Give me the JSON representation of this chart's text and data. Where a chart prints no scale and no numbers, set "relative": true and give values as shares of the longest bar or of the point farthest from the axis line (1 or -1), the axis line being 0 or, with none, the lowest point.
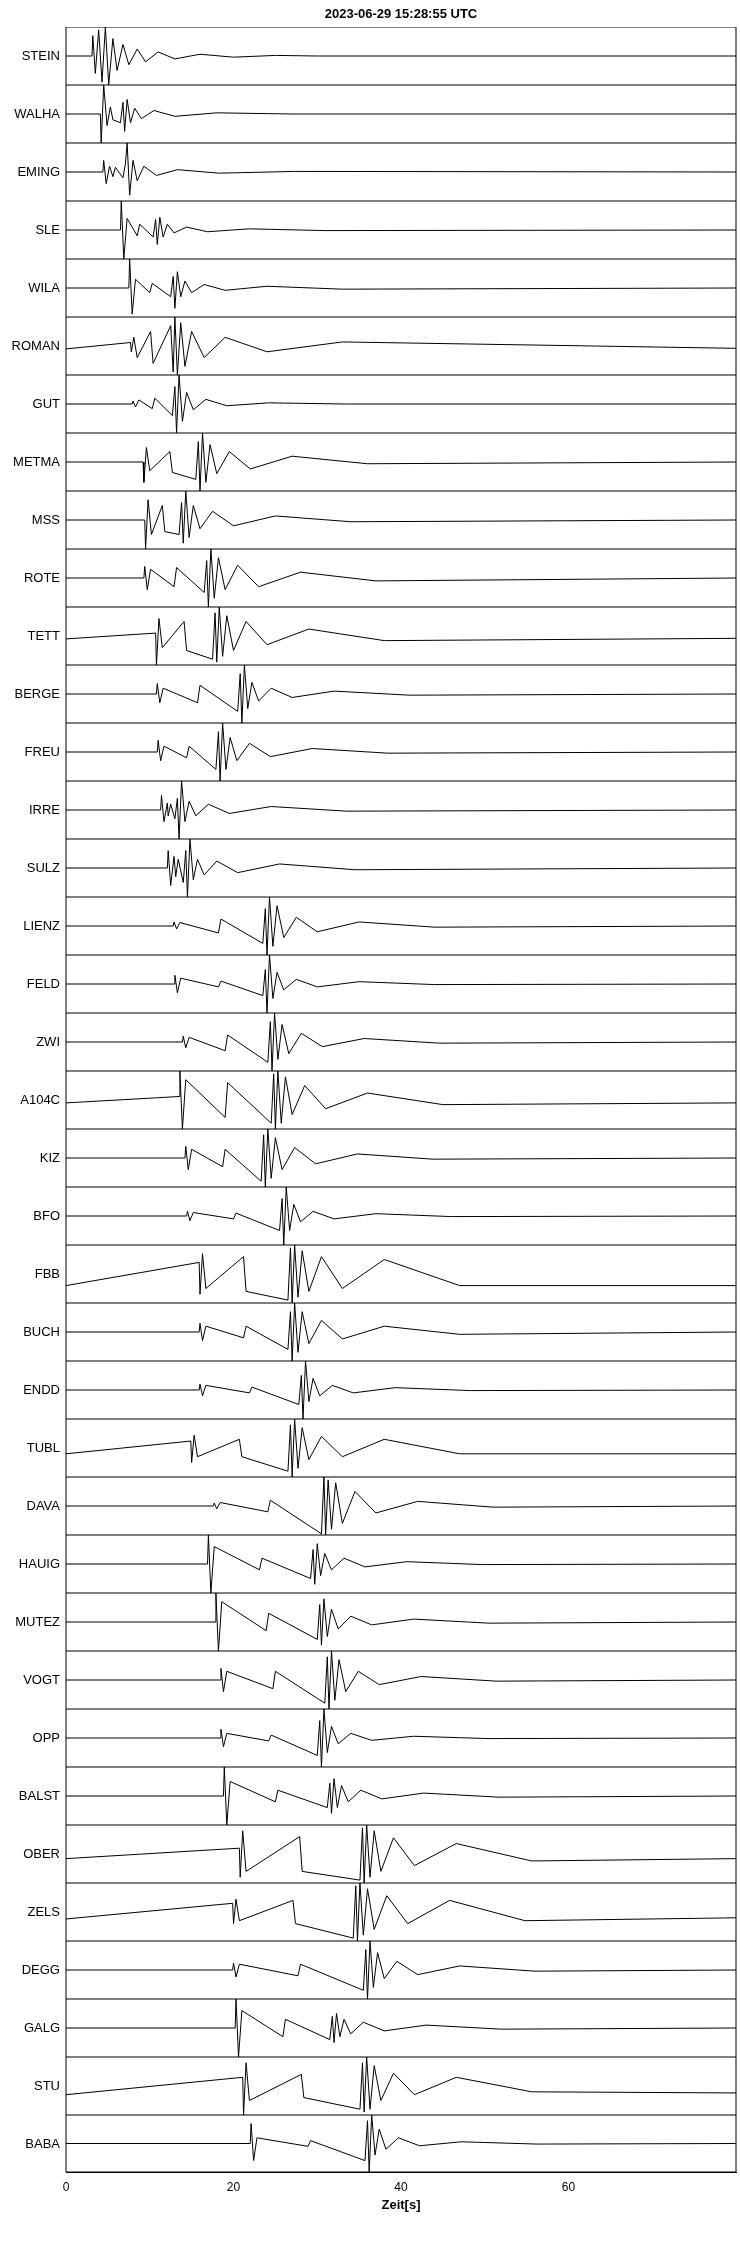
{
  "chart_data": [
    {
      "type": "line",
      "title": "2023-06-29  15:28:55 UTC",
      "relative": true,
      "ylabel": "STEIN",
      "color": "#000000",
      "xlim": [
        0,
        80
      ],
      "xticks": [
        0,
        20,
        40,
        60
      ],
      "tick_labels": false,
      "x": [
        0,
        3.1,
        3.2,
        3.5,
        3.9,
        4.3,
        4.7,
        5.1,
        5.6,
        6.1,
        6.8,
        7.5,
        8.5,
        9.5,
        11,
        13,
        16,
        20,
        25,
        30,
        38,
        80
      ],
      "values": [
        0.5,
        0.5,
        0.85,
        0.2,
        0.95,
        0.05,
        1,
        0,
        0.8,
        0.25,
        0.7,
        0.35,
        0.62,
        0.4,
        0.57,
        0.45,
        0.53,
        0.48,
        0.51,
        0.5,
        0.5,
        0.5
      ]
    },
    {
      "type": "line",
      "relative": true,
      "ylabel": "WALHA",
      "color": "#000000",
      "xlim": [
        0,
        80
      ],
      "xticks": [
        0,
        20,
        40,
        60
      ],
      "tick_labels": false,
      "x": [
        0,
        4.1,
        4.2,
        4.5,
        4.9,
        5.3,
        5.6,
        6.5,
        6.8,
        7.0,
        7.3,
        7.7,
        8.2,
        9,
        10.5,
        13,
        18,
        27,
        80
      ],
      "values": [
        0.5,
        0.5,
        0,
        1,
        0.3,
        0.62,
        0.4,
        0.35,
        0.7,
        0.2,
        0.75,
        0.35,
        0.6,
        0.42,
        0.56,
        0.46,
        0.52,
        0.5,
        0.5
      ]
    },
    {
      "type": "line",
      "relative": true,
      "ylabel": "EMING",
      "color": "#000000",
      "xlim": [
        0,
        80
      ],
      "xticks": [
        0,
        20,
        40,
        60
      ],
      "tick_labels": false,
      "x": [
        0,
        4.4,
        4.5,
        4.8,
        5.2,
        5.6,
        5.9,
        6.8,
        7.1,
        7.3,
        7.6,
        8.0,
        8.5,
        9.3,
        10.8,
        13.3,
        18.3,
        27.3,
        80
      ],
      "values": [
        0.5,
        0.5,
        0.7,
        0.3,
        0.6,
        0.42,
        0.58,
        0.4,
        0.65,
        1,
        0.1,
        0.7,
        0.35,
        0.6,
        0.44,
        0.54,
        0.48,
        0.51,
        0.5
      ]
    },
    {
      "type": "line",
      "relative": true,
      "ylabel": "SLE",
      "color": "#000000",
      "xlim": [
        0,
        80
      ],
      "xticks": [
        0,
        20,
        40,
        60
      ],
      "tick_labels": false,
      "x": [
        0,
        6.5,
        6.6,
        6.9,
        7.3,
        8.5,
        8.8,
        10.4,
        10.7,
        10.9,
        11.2,
        11.6,
        12.1,
        12.9,
        14.4,
        16.9,
        21.9,
        30.9,
        80
      ],
      "values": [
        0.5,
        0.5,
        1,
        0,
        0.7,
        0.4,
        0.6,
        0.38,
        0.68,
        0.25,
        0.72,
        0.38,
        0.6,
        0.45,
        0.55,
        0.47,
        0.52,
        0.49,
        0.5
      ]
    },
    {
      "type": "line",
      "relative": true,
      "ylabel": "WILA",
      "color": "#000000",
      "xlim": [
        0,
        80
      ],
      "xticks": [
        0,
        20,
        40,
        60
      ],
      "tick_labels": false,
      "x": [
        0,
        7.5,
        7.6,
        7.9,
        8.3,
        10,
        10.3,
        12.5,
        12.8,
        13,
        13.3,
        13.7,
        14.2,
        15,
        16.5,
        19,
        24,
        33,
        80
      ],
      "values": [
        0.5,
        0.5,
        1,
        0.05,
        0.65,
        0.42,
        0.58,
        0.35,
        0.7,
        0.15,
        0.78,
        0.35,
        0.62,
        0.42,
        0.56,
        0.46,
        0.53,
        0.48,
        0.5
      ]
    },
    {
      "type": "line",
      "relative": true,
      "ylabel": "ROMAN",
      "color": "#000000",
      "xlim": [
        0,
        80
      ],
      "xticks": [
        0,
        20,
        40,
        60
      ],
      "tick_labels": false,
      "x": [
        0,
        7.7,
        7.8,
        8.1,
        8.5,
        10.1,
        10.4,
        12.5,
        12.8,
        13,
        13.3,
        13.7,
        14.2,
        15,
        16.5,
        19,
        24,
        33,
        80
      ],
      "values": [
        0.45,
        0.56,
        0.4,
        0.65,
        0.3,
        0.75,
        0.2,
        0.85,
        0.05,
        1,
        0,
        0.9,
        0.15,
        0.75,
        0.3,
        0.65,
        0.4,
        0.57,
        0.46
      ]
    },
    {
      "type": "line",
      "relative": true,
      "ylabel": "GUT",
      "color": "#000000",
      "xlim": [
        0,
        80
      ],
      "xticks": [
        0,
        20,
        40,
        60
      ],
      "tick_labels": false,
      "x": [
        0,
        7.9,
        8,
        8.3,
        8.7,
        10.3,
        10.6,
        12.7,
        13,
        13.2,
        13.5,
        13.9,
        14.4,
        15.2,
        16.7,
        19.2,
        24.2,
        33.2,
        80
      ],
      "values": [
        0.5,
        0.5,
        0.55,
        0.45,
        0.57,
        0.42,
        0.6,
        0.3,
        0.8,
        0,
        1,
        0.2,
        0.7,
        0.4,
        0.58,
        0.47,
        0.52,
        0.5,
        0.5
      ]
    },
    {
      "type": "line",
      "relative": true,
      "ylabel": "METMA",
      "color": "#000000",
      "xlim": [
        0,
        80
      ],
      "xticks": [
        0,
        20,
        40,
        60
      ],
      "tick_labels": false,
      "x": [
        0,
        9.2,
        9.3,
        9.6,
        10,
        12.4,
        12.7,
        15.5,
        15.8,
        16,
        16.3,
        16.7,
        17.2,
        18,
        19.5,
        22,
        27,
        36,
        80
      ],
      "values": [
        0.5,
        0.5,
        0.15,
        0.75,
        0.35,
        0.68,
        0.32,
        0.2,
        0.85,
        0,
        1,
        0.15,
        0.8,
        0.3,
        0.68,
        0.38,
        0.6,
        0.47,
        0.5
      ]
    },
    {
      "type": "line",
      "relative": true,
      "ylabel": "MSS",
      "color": "#000000",
      "xlim": [
        0,
        80
      ],
      "xticks": [
        0,
        20,
        40,
        60
      ],
      "tick_labels": false,
      "x": [
        0,
        9.4,
        9.5,
        9.8,
        10.2,
        11.5,
        11.8,
        13.5,
        13.8,
        14,
        14.3,
        14.7,
        15.2,
        16,
        17.5,
        20,
        25,
        34,
        80
      ],
      "values": [
        0.5,
        0.5,
        0,
        0.85,
        0.25,
        0.75,
        0.3,
        0.25,
        0.8,
        0.1,
        1,
        0.2,
        0.75,
        0.35,
        0.65,
        0.4,
        0.57,
        0.47,
        0.5
      ]
    },
    {
      "type": "line",
      "relative": true,
      "ylabel": "ROTE",
      "color": "#000000",
      "xlim": [
        0,
        80
      ],
      "xticks": [
        0,
        20,
        40,
        60
      ],
      "tick_labels": false,
      "x": [
        0,
        9.3,
        9.4,
        9.7,
        10.1,
        12.9,
        13.2,
        16.5,
        16.8,
        17,
        17.3,
        17.7,
        18.2,
        19,
        20.5,
        23,
        28,
        37,
        80
      ],
      "values": [
        0.5,
        0.5,
        0.7,
        0.3,
        0.65,
        0.35,
        0.68,
        0.25,
        0.8,
        0,
        1,
        0.15,
        0.85,
        0.3,
        0.72,
        0.35,
        0.6,
        0.45,
        0.5
      ]
    },
    {
      "type": "line",
      "relative": true,
      "ylabel": "TETT",
      "color": "#000000",
      "xlim": [
        0,
        80
      ],
      "xticks": [
        0,
        20,
        40,
        60
      ],
      "tick_labels": false,
      "x": [
        0,
        10.7,
        10.8,
        11.1,
        11.5,
        14.1,
        14.4,
        17.5,
        17.8,
        18,
        18.3,
        18.7,
        19.2,
        20,
        21.5,
        24,
        29,
        38,
        80
      ],
      "values": [
        0.45,
        0.55,
        0,
        0.8,
        0.3,
        0.75,
        0.25,
        0.1,
        0.9,
        0.05,
        1,
        0.15,
        0.85,
        0.25,
        0.75,
        0.35,
        0.62,
        0.42,
        0.46
      ]
    },
    {
      "type": "line",
      "relative": true,
      "ylabel": "BERGE",
      "color": "#000000",
      "xlim": [
        0,
        80
      ],
      "xticks": [
        0,
        20,
        40,
        60
      ],
      "tick_labels": false,
      "x": [
        0,
        10.8,
        10.9,
        11.2,
        11.6,
        15.7,
        16,
        20.5,
        20.8,
        21,
        21.3,
        21.7,
        22.2,
        23,
        24.5,
        27,
        32,
        41,
        80
      ],
      "values": [
        0.5,
        0.5,
        0.68,
        0.35,
        0.6,
        0.35,
        0.65,
        0.2,
        0.85,
        0,
        1,
        0.25,
        0.7,
        0.38,
        0.6,
        0.44,
        0.55,
        0.48,
        0.5
      ]
    },
    {
      "type": "line",
      "relative": true,
      "ylabel": "FREU",
      "color": "#000000",
      "xlim": [
        0,
        80
      ],
      "xticks": [
        0,
        20,
        40,
        60
      ],
      "tick_labels": false,
      "x": [
        0,
        10.9,
        11,
        11.3,
        11.7,
        14.4,
        14.7,
        17.9,
        18.2,
        18.4,
        18.7,
        19.1,
        19.6,
        20.4,
        21.9,
        24.4,
        29.4,
        38.4,
        80
      ],
      "values": [
        0.5,
        0.5,
        0.7,
        0.35,
        0.6,
        0.4,
        0.6,
        0.2,
        0.85,
        0,
        1,
        0.2,
        0.75,
        0.35,
        0.65,
        0.42,
        0.56,
        0.48,
        0.5
      ]
    },
    {
      "type": "line",
      "relative": true,
      "ylabel": "IRRE",
      "color": "#000000",
      "xlim": [
        0,
        80
      ],
      "xticks": [
        0,
        20,
        40,
        60
      ],
      "tick_labels": false,
      "x": [
        0,
        11.3,
        11.4,
        11.7,
        12.1,
        12.2,
        12.5,
        13,
        13.3,
        13.5,
        13.8,
        14.2,
        14.7,
        15.5,
        17,
        19.5,
        24.5,
        33.5,
        80
      ],
      "values": [
        0.5,
        0.5,
        0.75,
        0.3,
        0.62,
        0.4,
        0.6,
        0.35,
        0.7,
        0,
        1,
        0.3,
        0.65,
        0.4,
        0.6,
        0.44,
        0.56,
        0.48,
        0.5
      ]
    },
    {
      "type": "line",
      "relative": true,
      "ylabel": "SULZ",
      "color": "#000000",
      "xlim": [
        0,
        80
      ],
      "xticks": [
        0,
        20,
        40,
        60
      ],
      "tick_labels": false,
      "x": [
        0,
        12.1,
        12.2,
        12.5,
        12.9,
        13.1,
        13.4,
        14,
        14.3,
        14.5,
        14.8,
        15.2,
        15.7,
        16.5,
        18,
        20.5,
        25.5,
        34.5,
        80
      ],
      "values": [
        0.5,
        0.5,
        0.8,
        0.2,
        0.7,
        0.35,
        0.65,
        0.25,
        0.8,
        0,
        1,
        0.3,
        0.65,
        0.38,
        0.62,
        0.42,
        0.57,
        0.47,
        0.5
      ]
    },
    {
      "type": "line",
      "relative": true,
      "ylabel": "LIENZ",
      "color": "#000000",
      "xlim": [
        0,
        80
      ],
      "xticks": [
        0,
        20,
        40,
        60
      ],
      "tick_labels": false,
      "x": [
        0,
        12.8,
        12.9,
        13.2,
        13.6,
        18.2,
        18.5,
        23.5,
        23.8,
        24,
        24.3,
        24.7,
        25.2,
        26,
        27.5,
        30,
        35,
        44,
        80
      ],
      "values": [
        0.5,
        0.5,
        0.57,
        0.45,
        0.56,
        0.38,
        0.62,
        0.2,
        0.8,
        0,
        1,
        0.15,
        0.85,
        0.3,
        0.65,
        0.4,
        0.57,
        0.48,
        0.5
      ]
    },
    {
      "type": "line",
      "relative": true,
      "ylabel": "FELD",
      "color": "#000000",
      "xlim": [
        0,
        80
      ],
      "xticks": [
        0,
        20,
        40,
        60
      ],
      "tick_labels": false,
      "x": [
        0,
        12.9,
        13,
        13.3,
        13.7,
        18.2,
        18.5,
        23.5,
        23.8,
        24,
        24.3,
        24.7,
        25.2,
        26,
        27.5,
        30,
        35,
        44,
        80
      ],
      "values": [
        0.5,
        0.5,
        0.65,
        0.35,
        0.6,
        0.45,
        0.55,
        0.3,
        0.75,
        0,
        1,
        0.25,
        0.7,
        0.4,
        0.58,
        0.45,
        0.54,
        0.49,
        0.5
      ]
    },
    {
      "type": "line",
      "relative": true,
      "ylabel": "ZWI",
      "color": "#000000",
      "xlim": [
        0,
        80
      ],
      "xticks": [
        0,
        20,
        40,
        60
      ],
      "tick_labels": false,
      "x": [
        0,
        13.9,
        14,
        14.3,
        14.7,
        19,
        19.3,
        24.1,
        24.4,
        24.6,
        24.9,
        25.3,
        25.8,
        26.6,
        28.1,
        30.6,
        35.6,
        44.6,
        80
      ],
      "values": [
        0.5,
        0.5,
        0.6,
        0.4,
        0.58,
        0.35,
        0.62,
        0.15,
        0.85,
        0,
        1,
        0.2,
        0.8,
        0.3,
        0.65,
        0.42,
        0.56,
        0.48,
        0.5
      ]
    },
    {
      "type": "line",
      "relative": true,
      "ylabel": "A104C",
      "color": "#000000",
      "xlim": [
        0,
        80
      ],
      "xticks": [
        0,
        20,
        40,
        60
      ],
      "tick_labels": false,
      "x": [
        0,
        13.5,
        13.6,
        13.9,
        14.3,
        19,
        19.3,
        24.5,
        24.8,
        25,
        25.3,
        25.7,
        26.2,
        27,
        28.5,
        31,
        36,
        45,
        80
      ],
      "values": [
        0.45,
        0.56,
        1,
        0,
        0.85,
        0.2,
        0.8,
        0.1,
        0.95,
        0,
        1,
        0.1,
        0.9,
        0.25,
        0.75,
        0.35,
        0.62,
        0.42,
        0.45
      ]
    },
    {
      "type": "line",
      "relative": true,
      "ylabel": "KIZ",
      "color": "#000000",
      "xlim": [
        0,
        80
      ],
      "xticks": [
        0,
        20,
        40,
        60
      ],
      "tick_labels": false,
      "x": [
        0,
        14.2,
        14.3,
        14.6,
        15,
        18.7,
        19,
        23.3,
        23.6,
        23.8,
        24.1,
        24.5,
        25,
        25.8,
        27.3,
        29.8,
        34.8,
        43.8,
        80
      ],
      "values": [
        0.5,
        0.5,
        0.7,
        0.3,
        0.65,
        0.35,
        0.65,
        0.1,
        0.9,
        0,
        1,
        0.15,
        0.85,
        0.3,
        0.68,
        0.4,
        0.57,
        0.48,
        0.5
      ]
    },
    {
      "type": "line",
      "relative": true,
      "ylabel": "BFO",
      "color": "#000000",
      "xlim": [
        0,
        80
      ],
      "xticks": [
        0,
        20,
        40,
        60
      ],
      "tick_labels": false,
      "x": [
        0,
        14.4,
        14.5,
        14.8,
        15.2,
        20,
        20.3,
        25.5,
        25.8,
        26,
        26.3,
        26.7,
        27.2,
        28,
        29.5,
        32,
        37,
        46,
        80
      ],
      "values": [
        0.5,
        0.5,
        0.58,
        0.42,
        0.56,
        0.45,
        0.55,
        0.25,
        0.8,
        0,
        1,
        0.25,
        0.7,
        0.4,
        0.58,
        0.45,
        0.54,
        0.49,
        0.5
      ]
    },
    {
      "type": "line",
      "relative": true,
      "ylabel": "FBB",
      "color": "#000000",
      "xlim": [
        0,
        80
      ],
      "xticks": [
        0,
        20,
        40,
        60
      ],
      "tick_labels": false,
      "x": [
        0,
        15.9,
        16,
        16.3,
        16.7,
        21.2,
        21.5,
        26.5,
        26.8,
        27,
        27.3,
        27.7,
        28.2,
        29,
        30.5,
        33,
        38,
        47,
        80
      ],
      "values": [
        0.3,
        0.7,
        0.15,
        0.85,
        0.25,
        0.8,
        0.2,
        0.05,
        0.95,
        0,
        1,
        0.1,
        0.9,
        0.2,
        0.8,
        0.25,
        0.75,
        0.3,
        0.3
      ]
    },
    {
      "type": "line",
      "relative": true,
      "ylabel": "BUCH",
      "color": "#000000",
      "xlim": [
        0,
        80
      ],
      "xticks": [
        0,
        20,
        40,
        60
      ],
      "tick_labels": false,
      "x": [
        0,
        15.9,
        16,
        16.3,
        16.7,
        21.2,
        21.5,
        26.5,
        26.8,
        27,
        27.3,
        27.7,
        28.2,
        29,
        30.5,
        33,
        38,
        47,
        80
      ],
      "values": [
        0.5,
        0.5,
        0.65,
        0.35,
        0.6,
        0.4,
        0.6,
        0.2,
        0.85,
        0,
        1,
        0.15,
        0.85,
        0.3,
        0.7,
        0.38,
        0.6,
        0.46,
        0.5
      ]
    },
    {
      "type": "line",
      "relative": true,
      "ylabel": "ENDD",
      "color": "#000000",
      "xlim": [
        0,
        80
      ],
      "xticks": [
        0,
        20,
        40,
        60
      ],
      "tick_labels": false,
      "x": [
        0,
        15.9,
        16,
        16.3,
        16.7,
        21.9,
        22.2,
        27.8,
        28.1,
        28.3,
        28.6,
        29,
        29.5,
        30.3,
        31.8,
        34.3,
        39.3,
        48.3,
        80
      ],
      "values": [
        0.5,
        0.5,
        0.6,
        0.4,
        0.58,
        0.45,
        0.55,
        0.25,
        0.75,
        0,
        1,
        0.3,
        0.7,
        0.4,
        0.58,
        0.45,
        0.54,
        0.49,
        0.5
      ]
    },
    {
      "type": "line",
      "relative": true,
      "ylabel": "TUBL",
      "color": "#000000",
      "xlim": [
        0,
        80
      ],
      "xticks": [
        0,
        20,
        40,
        60
      ],
      "tick_labels": false,
      "x": [
        0,
        14.9,
        15,
        15.3,
        15.7,
        20.7,
        21,
        26.5,
        26.8,
        27,
        27.3,
        27.7,
        28.2,
        29,
        30.5,
        33,
        38,
        47,
        80
      ],
      "values": [
        0.4,
        0.62,
        0.25,
        0.72,
        0.35,
        0.65,
        0.35,
        0.1,
        0.9,
        0,
        1,
        0.15,
        0.85,
        0.3,
        0.7,
        0.35,
        0.65,
        0.4,
        0.4
      ]
    },
    {
      "type": "line",
      "relative": true,
      "ylabel": "DAVA",
      "color": "#000000",
      "xlim": [
        0,
        80
      ],
      "xticks": [
        0,
        20,
        40,
        60
      ],
      "tick_labels": false,
      "x": [
        0,
        17.6,
        17.7,
        18,
        18.4,
        24.1,
        24.4,
        30.5,
        30.8,
        31,
        31.3,
        31.7,
        32.2,
        33,
        34.5,
        37,
        42,
        51,
        80
      ],
      "values": [
        0.5,
        0.5,
        0.55,
        0.45,
        0.56,
        0.4,
        0.6,
        0.02,
        1,
        0,
        0.95,
        0.1,
        0.9,
        0.2,
        0.75,
        0.38,
        0.58,
        0.48,
        0.5
      ]
    },
    {
      "type": "line",
      "relative": true,
      "ylabel": "HAUIG",
      "color": "#000000",
      "xlim": [
        0,
        80
      ],
      "xticks": [
        0,
        20,
        40,
        60
      ],
      "tick_labels": false,
      "x": [
        0,
        16.9,
        17,
        17.3,
        17.7,
        23.1,
        23.4,
        29.2,
        29.5,
        29.7,
        30,
        30.4,
        30.9,
        31.7,
        33.2,
        35.7,
        40.7,
        49.7,
        80
      ],
      "values": [
        0.5,
        0.5,
        1,
        0,
        0.8,
        0.4,
        0.6,
        0.25,
        0.75,
        0.15,
        0.85,
        0.3,
        0.68,
        0.4,
        0.6,
        0.45,
        0.54,
        0.49,
        0.5
      ]
    },
    {
      "type": "line",
      "relative": true,
      "ylabel": "MUTEZ",
      "color": "#000000",
      "xlim": [
        0,
        80
      ],
      "xticks": [
        0,
        20,
        40,
        60
      ],
      "tick_labels": false,
      "x": [
        0,
        17.8,
        17.9,
        18.2,
        18.6,
        23.9,
        24.2,
        30,
        30.3,
        30.5,
        30.8,
        31.2,
        31.7,
        32.5,
        34,
        36.5,
        41.5,
        50.5,
        80
      ],
      "values": [
        0.5,
        0.5,
        1,
        0,
        0.85,
        0.35,
        0.65,
        0.2,
        0.8,
        0.1,
        0.9,
        0.25,
        0.72,
        0.38,
        0.6,
        0.45,
        0.55,
        0.48,
        0.5
      ]
    },
    {
      "type": "line",
      "relative": true,
      "ylabel": "VOGT",
      "color": "#000000",
      "xlim": [
        0,
        80
      ],
      "xticks": [
        0,
        20,
        40,
        60
      ],
      "tick_labels": false,
      "x": [
        0,
        18.4,
        18.5,
        18.8,
        19.2,
        24.7,
        25,
        30.9,
        31.2,
        31.4,
        31.7,
        32.1,
        32.6,
        33.4,
        34.9,
        37.4,
        42.4,
        51.4,
        80
      ],
      "values": [
        0.5,
        0.5,
        0.7,
        0.3,
        0.65,
        0.35,
        0.65,
        0.1,
        0.9,
        0,
        1,
        0.15,
        0.85,
        0.3,
        0.65,
        0.42,
        0.56,
        0.48,
        0.5
      ]
    },
    {
      "type": "line",
      "relative": true,
      "ylabel": "OPP",
      "color": "#000000",
      "xlim": [
        0,
        80
      ],
      "xticks": [
        0,
        20,
        40,
        60
      ],
      "tick_labels": false,
      "x": [
        0,
        18.4,
        18.5,
        18.8,
        19.2,
        24.2,
        24.5,
        30,
        30.3,
        30.5,
        30.8,
        31.2,
        31.7,
        32.5,
        34,
        36.5,
        41.5,
        50.5,
        80
      ],
      "values": [
        0.5,
        0.5,
        0.65,
        0.35,
        0.58,
        0.45,
        0.55,
        0.2,
        0.8,
        0,
        1,
        0.25,
        0.7,
        0.4,
        0.58,
        0.46,
        0.53,
        0.49,
        0.5
      ]
    },
    {
      "type": "line",
      "relative": true,
      "ylabel": "BALST",
      "color": "#000000",
      "xlim": [
        0,
        80
      ],
      "xticks": [
        0,
        20,
        40,
        60
      ],
      "tick_labels": false,
      "x": [
        0,
        18.8,
        18.9,
        19.2,
        19.6,
        25,
        25.3,
        31.2,
        31.5,
        31.7,
        32,
        32.4,
        32.9,
        33.7,
        35.2,
        37.7,
        42.7,
        51.7,
        80
      ],
      "values": [
        0.5,
        0.5,
        1,
        0,
        0.75,
        0.4,
        0.6,
        0.3,
        0.72,
        0.2,
        0.8,
        0.3,
        0.68,
        0.4,
        0.6,
        0.45,
        0.55,
        0.48,
        0.5
      ]
    },
    {
      "type": "line",
      "relative": true,
      "ylabel": "OBER",
      "color": "#000000",
      "xlim": [
        0,
        80
      ],
      "xticks": [
        0,
        20,
        40,
        60
      ],
      "tick_labels": false,
      "x": [
        0,
        20.7,
        20.8,
        21.1,
        21.5,
        27.9,
        28.2,
        35.1,
        35.4,
        35.6,
        35.9,
        36.3,
        36.8,
        37.6,
        39.1,
        41.6,
        46.6,
        55.6,
        80
      ],
      "values": [
        0.42,
        0.6,
        0.1,
        0.9,
        0.2,
        0.8,
        0.2,
        0.05,
        0.95,
        0,
        1,
        0.1,
        0.9,
        0.2,
        0.78,
        0.3,
        0.68,
        0.38,
        0.42
      ]
    },
    {
      "type": "line",
      "relative": true,
      "ylabel": "ZELS",
      "color": "#000000",
      "xlim": [
        0,
        80
      ],
      "xticks": [
        0,
        20,
        40,
        60
      ],
      "tick_labels": false,
      "x": [
        0,
        19.9,
        20,
        20.3,
        20.7,
        27.1,
        27.4,
        34.3,
        34.6,
        34.8,
        35.1,
        35.5,
        36,
        36.8,
        38.3,
        40.8,
        45.8,
        54.8,
        80
      ],
      "values": [
        0.38,
        0.65,
        0.3,
        0.72,
        0.35,
        0.7,
        0.3,
        0.05,
        0.95,
        0,
        1,
        0.1,
        0.9,
        0.2,
        0.78,
        0.3,
        0.7,
        0.35,
        0.4
      ]
    },
    {
      "type": "line",
      "relative": true,
      "ylabel": "DEGG",
      "color": "#000000",
      "xlim": [
        0,
        80
      ],
      "xticks": [
        0,
        20,
        40,
        60
      ],
      "tick_labels": false,
      "x": [
        0,
        19.9,
        20,
        20.3,
        20.7,
        27.7,
        28,
        35.5,
        35.8,
        36,
        36.3,
        36.7,
        37.2,
        38,
        39.5,
        42,
        47,
        56,
        80
      ],
      "values": [
        0.5,
        0.5,
        0.62,
        0.38,
        0.6,
        0.4,
        0.6,
        0.15,
        0.85,
        0,
        1,
        0.2,
        0.8,
        0.35,
        0.65,
        0.42,
        0.57,
        0.48,
        0.5
      ]
    },
    {
      "type": "line",
      "relative": true,
      "ylabel": "GALG",
      "color": "#000000",
      "xlim": [
        0,
        80
      ],
      "xticks": [
        0,
        20,
        40,
        60
      ],
      "tick_labels": false,
      "x": [
        0,
        20.2,
        20.3,
        20.6,
        21,
        25.9,
        26.2,
        31.5,
        31.8,
        32,
        32.3,
        32.7,
        33.2,
        34,
        35.5,
        38,
        43,
        52,
        80
      ],
      "values": [
        0.5,
        0.5,
        1,
        0,
        0.8,
        0.35,
        0.65,
        0.3,
        0.7,
        0.25,
        0.75,
        0.35,
        0.65,
        0.4,
        0.6,
        0.45,
        0.55,
        0.48,
        0.5
      ]
    },
    {
      "type": "line",
      "relative": true,
      "ylabel": "STU",
      "color": "#000000",
      "xlim": [
        0,
        80
      ],
      "xticks": [
        0,
        20,
        40,
        60
      ],
      "tick_labels": false,
      "x": [
        0,
        21.1,
        21.2,
        21.5,
        21.9,
        28.1,
        28.4,
        35.1,
        35.4,
        35.6,
        35.9,
        36.3,
        36.8,
        37.6,
        39.1,
        41.6,
        46.6,
        55.6,
        80
      ],
      "values": [
        0.35,
        0.65,
        0,
        0.9,
        0.25,
        0.7,
        0.3,
        0.1,
        0.9,
        0.05,
        1,
        0.1,
        0.85,
        0.25,
        0.72,
        0.35,
        0.65,
        0.4,
        0.38
      ]
    },
    {
      "type": "line",
      "relative": true,
      "ylabel": "BABA",
      "xlabel": "Zeit[s]",
      "color": "#000000",
      "xlim": [
        0,
        80
      ],
      "xticks": [
        0,
        20,
        40,
        60
      ],
      "tick_labels": "x",
      "x": [
        0,
        22,
        22.1,
        22.4,
        22.8,
        28.9,
        29.2,
        35.7,
        36,
        36.2,
        36.5,
        36.9,
        37.4,
        38.2,
        39.7,
        42.2,
        47.2,
        56.2,
        80
      ],
      "values": [
        0.5,
        0.5,
        0.85,
        0.2,
        0.6,
        0.45,
        0.55,
        0.2,
        0.9,
        0,
        1,
        0.3,
        0.75,
        0.4,
        0.6,
        0.46,
        0.53,
        0.49,
        0.5
      ]
    }
  ]
}
